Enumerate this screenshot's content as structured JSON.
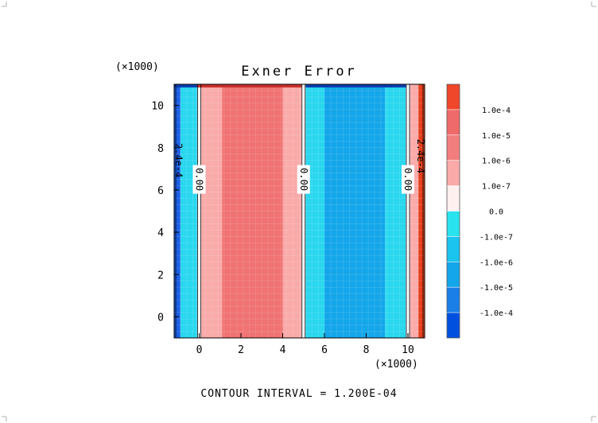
{
  "chart_data": {
    "type": "heatmap",
    "title": "Exner Error",
    "xlabel": "",
    "ylabel": "",
    "x_multiplier": "(×1000)",
    "y_multiplier": "(×1000)",
    "xlim": [
      -1.2,
      10.8
    ],
    "ylim": [
      -1.0,
      11.0
    ],
    "x_ticks": [
      0,
      2,
      4,
      6,
      8,
      10
    ],
    "y_ticks": [
      0,
      2,
      4,
      6,
      8,
      10
    ],
    "x_tick_labels": [
      "0",
      "2",
      "4",
      "6",
      "8",
      "10"
    ],
    "y_tick_labels": [
      "0",
      "2",
      "4",
      "6",
      "8",
      "10"
    ],
    "vertical_bands": [
      {
        "x0": -1.2,
        "x1": -0.9,
        "level": "-1.0e-5",
        "color": "#1b5fe6"
      },
      {
        "x0": -0.9,
        "x1": -0.1,
        "level": "-1.0e-7",
        "color": "#29d7ef"
      },
      {
        "x0": -0.1,
        "x1": 0.1,
        "level": "0.0",
        "color": "#ffffff"
      },
      {
        "x0": 0.1,
        "x1": 1.1,
        "level": "1.0e-7",
        "color": "#f9aaa9"
      },
      {
        "x0": 1.1,
        "x1": 4.0,
        "level": "1.0e-6",
        "color": "#f07272"
      },
      {
        "x0": 4.0,
        "x1": 4.9,
        "level": "1.0e-7",
        "color": "#f9aaa9"
      },
      {
        "x0": 4.9,
        "x1": 5.1,
        "level": "0.0",
        "color": "#ffffff"
      },
      {
        "x0": 5.1,
        "x1": 6.0,
        "level": "-1.0e-7",
        "color": "#29d7ef"
      },
      {
        "x0": 6.0,
        "x1": 8.9,
        "level": "-1.0e-6",
        "color": "#13a6ea"
      },
      {
        "x0": 8.9,
        "x1": 9.9,
        "level": "-1.0e-7",
        "color": "#29d7ef"
      },
      {
        "x0": 9.9,
        "x1": 10.1,
        "level": "0.0",
        "color": "#ffffff"
      },
      {
        "x0": 10.1,
        "x1": 10.5,
        "level": "1.0e-7",
        "color": "#f9aaa9"
      },
      {
        "x0": 10.5,
        "x1": 10.8,
        "level": "1.0e-5",
        "color": "#e5401e"
      }
    ],
    "contour_labels": [
      {
        "text": "0.00",
        "x": 0.0,
        "y": 6.5
      },
      {
        "text": "0.00",
        "x": 5.0,
        "y": 6.5
      },
      {
        "text": "0.00",
        "x": 10.0,
        "y": 6.5
      },
      {
        "text": "2.4e-4",
        "x": -1.0,
        "y": 7.4
      },
      {
        "text": "2.4e-4",
        "x": 10.6,
        "y": 7.6
      }
    ],
    "colorbar": {
      "labels": [
        "-1.0e-4",
        "-1.0e-5",
        "-1.0e-6",
        "-1.0e-7",
        "0.0",
        "1.0e-7",
        "1.0e-6",
        "1.0e-5",
        "1.0e-4"
      ],
      "colors": [
        "#0050e0",
        "#1b7fe8",
        "#13a6ea",
        "#1bc3ef",
        "#29e3ef",
        "#fff0f0",
        "#f9aaa9",
        "#f37e7e",
        "#ef6a6a",
        "#f0462a"
      ]
    },
    "contour_interval_text": "CONTOUR INTERVAL = 1.200E-04"
  }
}
